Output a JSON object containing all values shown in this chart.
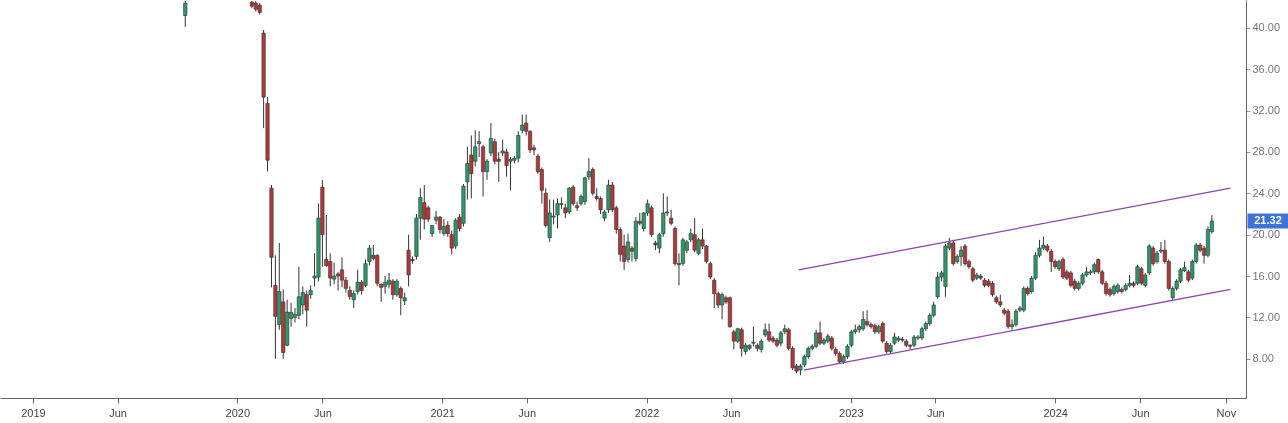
{
  "chart_data": {
    "type": "candlestick",
    "colors": [
      "#2a9a6a",
      "#b23838",
      "#b23838",
      "#b23838",
      "#b23838",
      "#b23838",
      "#b23838",
      "#b23838",
      "#2a9a6a",
      "#b23838",
      "#2a9a6a",
      "#2a9a6a",
      "#2a9a6a",
      "#2a9a6a",
      "#2a9a6a",
      "#b23838",
      "#2a9a6a",
      "#2a9a6a",
      "#2a9a6a",
      "#b23838",
      "#b23838",
      "#b23838",
      "#2a9a6a",
      "#b23838",
      "#b23838",
      "#b23838",
      "#b23838",
      "#2a9a6a",
      "#2a9a6a",
      "#b23838",
      "#2a9a6a",
      "#2a9a6a",
      "#b23838",
      "#b23838",
      "#b23838",
      "#2a9a6a",
      "#2a9a6a",
      "#b23838",
      "#2a9a6a",
      "#b23838",
      "#2a9a6a",
      "#b23838",
      "#b23838",
      "#2a9a6a",
      "#2a9a6a",
      "#b23838",
      "#b23838",
      "#2a9a6a",
      "#2a9a6a",
      "#b23838",
      "#2a9a6a",
      "#b23838",
      "#b23838",
      "#2a9a6a",
      "#b23838",
      "#2a9a6a",
      "#2a9a6a",
      "#b23838",
      "#2a9a6a",
      "#2a9a6a",
      "#b23838",
      "#2a9a6a",
      "#2a9a6a",
      "#b23838",
      "#b23838",
      "#2a9a6a",
      "#b23838",
      "#2a9a6a",
      "#2a9a6a",
      "#2a9a6a",
      "#2a9a6a",
      "#b23838",
      "#b23838",
      "#b23838",
      "#b23838",
      "#b23838",
      "#b23838",
      "#2a9a6a",
      "#2a9a6a",
      "#2a9a6a",
      "#2a9a6a",
      "#b23838",
      "#2a9a6a",
      "#b23838",
      "#b23838",
      "#2a9a6a",
      "#2a9a6a",
      "#2a9a6a",
      "#b23838",
      "#b23838",
      "#b23838",
      "#2a9a6a",
      "#2a9a6a",
      "#b23838",
      "#b23838",
      "#b23838",
      "#b23838",
      "#2a9a6a",
      "#b23838",
      "#2a9a6a",
      "#b23838",
      "#2a9a6a",
      "#2a9a6a",
      "#b23838",
      "#b23838",
      "#2a9a6a",
      "#2a9a6a",
      "#2a9a6a",
      "#b23838",
      "#b23838",
      "#b23838",
      "#2a9a6a",
      "#2a9a6a",
      "#2a9a6a",
      "#b23838",
      "#2a9a6a",
      "#b23838",
      "#b23838",
      "#b23838",
      "#b23838",
      "#b23838",
      "#2a9a6a",
      "#b23838",
      "#b23838",
      "#b23838",
      "#2a9a6a",
      "#b23838",
      "#2a9a6a",
      "#2a9a6a",
      "#2a9a6a",
      "#b23838",
      "#2a9a6a",
      "#2a9a6a",
      "#b23838",
      "#b23838",
      "#b23838",
      "#2a9a6a",
      "#2a9a6a",
      "#b23838",
      "#b23838",
      "#b23838",
      "#2a9a6a",
      "#2a9a6a",
      "#2a9a6a",
      "#2a9a6a",
      "#2a9a6a",
      "#b23838",
      "#2a9a6a",
      "#2a9a6a",
      "#b23838",
      "#b23838",
      "#b23838",
      "#2a9a6a",
      "#2a9a6a",
      "#2a9a6a",
      "#2a9a6a",
      "#2a9a6a",
      "#2a9a6a",
      "#b23838",
      "#b23838",
      "#b23838",
      "#2a9a6a",
      "#b23838",
      "#b23838",
      "#2a9a6a",
      "#2a9a6a",
      "#2a9a6a",
      "#b23838",
      "#b23838",
      "#b23838",
      "#2a9a6a",
      "#2a9a6a",
      "#2a9a6a",
      "#2a9a6a",
      "#2a9a6a",
      "#2a9a6a",
      "#2a9a6a",
      "#2a9a6a",
      "#2a9a6a",
      "#2a9a6a",
      "#b23838",
      "#2a9a6a",
      "#2a9a6a",
      "#b23838",
      "#b23838",
      "#b23838",
      "#2a9a6a",
      "#b23838",
      "#b23838",
      "#b23838",
      "#b23838",
      "#b23838",
      "#b23838",
      "#b23838",
      "#b23838",
      "#2a9a6a",
      "#2a9a6a",
      "#2a9a6a",
      "#2a9a6a",
      "#b23838",
      "#2a9a6a",
      "#2a9a6a",
      "#2a9a6a",
      "#2a9a6a",
      "#b23838",
      "#b23838",
      "#b23838",
      "#2a9a6a",
      "#b23838",
      "#b23838",
      "#b23838",
      "#b23838",
      "#2a9a6a",
      "#2a9a6a",
      "#2a9a6a",
      "#2a9a6a",
      "#2a9a6a",
      "#b23838",
      "#b23838",
      "#b23838",
      "#b23838",
      "#2a9a6a",
      "#2a9a6a",
      "#b23838",
      "#2a9a6a",
      "#2a9a6a",
      "#b23838",
      "#2a9a6a",
      "#b23838",
      "#2a9a6a",
      "#2a9a6a",
      "#b23838",
      "#2a9a6a",
      "#2a9a6a",
      "#b23838",
      "#b23838",
      "#2a9a6a",
      "#2a9a6a",
      "#2a9a6a",
      "#2a9a6a",
      "#b23838",
      "#2a9a6a",
      "#2a9a6a",
      "#b23838",
      "#b23838",
      "#2a9a6a",
      "#2a9a6a"
    ],
    "x": [
      "2019-09-30",
      "2020-01-27",
      "2020-02-03",
      "2020-02-10",
      "2020-02-17",
      "2020-02-24",
      "2020-03-02",
      "2020-03-09",
      "2020-03-16",
      "2020-03-23",
      "2020-03-30",
      "2020-04-06",
      "2020-04-13",
      "2020-04-20",
      "2020-04-27",
      "2020-05-04",
      "2020-05-11",
      "2020-05-18",
      "2020-05-25",
      "2020-06-01",
      "2020-06-08",
      "2020-06-15",
      "2020-06-22",
      "2020-06-29",
      "2020-07-06",
      "2020-07-13",
      "2020-07-20",
      "2020-07-27",
      "2020-08-03",
      "2020-08-10",
      "2020-08-17",
      "2020-08-24",
      "2020-08-31",
      "2020-09-07",
      "2020-09-14",
      "2020-09-21",
      "2020-09-28",
      "2020-10-05",
      "2020-10-12",
      "2020-10-19",
      "2020-10-26",
      "2020-11-02",
      "2020-11-09",
      "2020-11-16",
      "2020-11-23",
      "2020-11-30",
      "2020-12-07",
      "2020-12-14",
      "2020-12-21",
      "2020-12-28",
      "2021-01-04",
      "2021-01-11",
      "2021-01-18",
      "2021-01-25",
      "2021-02-01",
      "2021-02-08",
      "2021-02-15",
      "2021-02-22",
      "2021-03-01",
      "2021-03-08",
      "2021-03-15",
      "2021-03-22",
      "2021-03-29",
      "2021-04-05",
      "2021-04-12",
      "2021-04-19",
      "2021-04-26",
      "2021-05-03",
      "2021-05-10",
      "2021-05-17",
      "2021-05-24",
      "2021-05-31",
      "2021-06-07",
      "2021-06-14",
      "2021-06-21",
      "2021-06-28",
      "2021-07-05",
      "2021-07-12",
      "2021-07-19",
      "2021-07-26",
      "2021-08-02",
      "2021-08-09",
      "2021-08-16",
      "2021-08-23",
      "2021-08-30",
      "2021-09-06",
      "2021-09-13",
      "2021-09-20",
      "2021-09-27",
      "2021-10-04",
      "2021-10-11",
      "2021-10-18",
      "2021-10-25",
      "2021-11-01",
      "2021-11-08",
      "2021-11-15",
      "2021-11-22",
      "2021-11-29",
      "2021-12-06",
      "2021-12-13",
      "2021-12-20",
      "2021-12-27",
      "2022-01-03",
      "2022-01-10",
      "2022-01-17",
      "2022-01-24",
      "2022-01-31",
      "2022-02-07",
      "2022-02-14",
      "2022-02-21",
      "2022-02-28",
      "2022-03-07",
      "2022-03-14",
      "2022-03-21",
      "2022-03-28",
      "2022-04-04",
      "2022-04-11",
      "2022-04-18",
      "2022-04-25",
      "2022-05-02",
      "2022-05-09",
      "2022-05-16",
      "2022-05-23",
      "2022-05-30",
      "2022-06-06",
      "2022-06-13",
      "2022-06-20",
      "2022-06-27",
      "2022-07-04",
      "2022-07-11",
      "2022-07-18",
      "2022-07-25",
      "2022-08-01",
      "2022-08-08",
      "2022-08-15",
      "2022-08-22",
      "2022-08-29",
      "2022-09-05",
      "2022-09-12",
      "2022-09-19",
      "2022-09-26",
      "2022-10-03",
      "2022-10-10",
      "2022-10-17",
      "2022-10-24",
      "2022-10-31",
      "2022-11-07",
      "2022-11-14",
      "2022-11-21",
      "2022-11-28",
      "2022-12-05",
      "2022-12-12",
      "2022-12-19",
      "2022-12-26",
      "2023-01-02",
      "2023-01-09",
      "2023-01-16",
      "2023-01-23",
      "2023-01-30",
      "2023-02-06",
      "2023-02-13",
      "2023-02-20",
      "2023-02-27",
      "2023-03-06",
      "2023-03-13",
      "2023-03-20",
      "2023-03-27",
      "2023-04-03",
      "2023-04-10",
      "2023-04-17",
      "2023-04-24",
      "2023-05-01",
      "2023-05-08",
      "2023-05-15",
      "2023-05-22",
      "2023-05-29",
      "2023-06-05",
      "2023-06-12",
      "2023-06-19",
      "2023-06-26",
      "2023-07-03",
      "2023-07-10",
      "2023-07-17",
      "2023-07-24",
      "2023-07-31",
      "2023-08-07",
      "2023-08-14",
      "2023-08-21",
      "2023-08-28",
      "2023-09-04",
      "2023-09-11",
      "2023-09-18",
      "2023-09-25",
      "2023-10-02",
      "2023-10-09",
      "2023-10-16",
      "2023-10-23",
      "2023-10-30",
      "2023-11-06",
      "2023-11-13",
      "2023-11-20",
      "2023-11-27",
      "2023-12-04",
      "2023-12-11",
      "2023-12-18",
      "2023-12-25",
      "2024-01-01",
      "2024-01-08",
      "2024-01-15",
      "2024-01-22",
      "2024-01-29",
      "2024-02-05",
      "2024-02-12",
      "2024-02-19",
      "2024-02-26",
      "2024-03-04",
      "2024-03-11",
      "2024-03-18",
      "2024-03-25",
      "2024-04-01",
      "2024-04-08",
      "2024-04-15",
      "2024-04-22",
      "2024-04-29",
      "2024-05-06",
      "2024-05-13",
      "2024-05-20",
      "2024-05-27",
      "2024-06-03",
      "2024-06-10",
      "2024-06-17",
      "2024-06-24",
      "2024-07-01",
      "2024-07-08",
      "2024-07-15",
      "2024-07-22",
      "2024-07-29",
      "2024-08-05",
      "2024-08-12",
      "2024-08-19",
      "2024-08-26",
      "2024-09-02",
      "2024-09-09",
      "2024-09-16",
      "2024-09-23",
      "2024-09-30",
      "2024-10-07"
    ],
    "ohlc": [
      [
        41.2,
        42.6,
        40.1,
        42.4
      ],
      [
        42.5,
        42.6,
        41.9,
        42.1
      ],
      [
        42.4,
        42.6,
        41.6,
        41.8
      ],
      [
        42.2,
        42.4,
        41.3,
        41.5
      ],
      [
        39.5,
        39.8,
        30.3,
        33.3
      ],
      [
        32.7,
        33.3,
        26.1,
        27.2
      ],
      [
        24.5,
        24.8,
        14.9,
        17.8
      ],
      [
        15.1,
        18.0,
        8.0,
        12.1
      ],
      [
        11.3,
        19.2,
        10.8,
        14.5
      ],
      [
        13.5,
        14.7,
        8.0,
        8.6
      ],
      [
        9.3,
        13.7,
        9.2,
        12.5
      ],
      [
        11.9,
        13.4,
        11.1,
        12.5
      ],
      [
        12.0,
        12.9,
        11.5,
        12.3
      ],
      [
        12.2,
        16.9,
        11.8,
        14.0
      ],
      [
        13.2,
        15.0,
        12.3,
        14.4
      ],
      [
        14.2,
        14.6,
        11.1,
        12.7
      ],
      [
        14.2,
        15.1,
        13.8,
        14.6
      ],
      [
        15.8,
        18.2,
        15.0,
        16.0
      ],
      [
        15.9,
        23.0,
        15.5,
        21.6
      ],
      [
        24.6,
        25.3,
        16.9,
        20.0
      ],
      [
        17.6,
        21.9,
        16.9,
        17.0
      ],
      [
        17.4,
        18.2,
        15.0,
        15.8
      ],
      [
        15.7,
        17.3,
        15.2,
        16.0
      ],
      [
        16.2,
        16.4,
        14.6,
        16.0
      ],
      [
        16.6,
        17.8,
        14.9,
        15.6
      ],
      [
        15.6,
        15.9,
        14.4,
        14.8
      ],
      [
        14.6,
        15.0,
        13.7,
        14.0
      ],
      [
        13.7,
        14.6,
        12.9,
        14.3
      ],
      [
        14.5,
        16.6,
        14.2,
        15.4
      ],
      [
        15.4,
        15.6,
        14.2,
        14.6
      ],
      [
        15.1,
        17.6,
        14.9,
        17.2
      ],
      [
        17.4,
        19.0,
        17.0,
        18.7
      ],
      [
        18.0,
        19.0,
        17.5,
        17.7
      ],
      [
        18.0,
        18.1,
        15.0,
        15.3
      ],
      [
        15.2,
        15.3,
        13.5,
        14.9
      ],
      [
        15.0,
        16.0,
        14.3,
        15.4
      ],
      [
        15.2,
        16.3,
        14.8,
        15.6
      ],
      [
        15.5,
        15.7,
        13.7,
        14.2
      ],
      [
        14.2,
        15.7,
        14.0,
        15.5
      ],
      [
        14.8,
        15.0,
        12.2,
        13.9
      ],
      [
        13.6,
        14.4,
        13.2,
        13.9
      ],
      [
        18.5,
        20.0,
        15.0,
        16.1
      ],
      [
        17.6,
        17.9,
        17.2,
        17.5
      ],
      [
        17.9,
        22.0,
        17.6,
        21.6
      ],
      [
        21.6,
        24.5,
        19.5,
        23.6
      ],
      [
        23.1,
        24.8,
        20.5,
        21.5
      ],
      [
        22.6,
        22.8,
        21.2,
        21.5
      ],
      [
        20.1,
        20.9,
        19.8,
        20.9
      ],
      [
        21.4,
        22.3,
        21.0,
        21.7
      ],
      [
        21.7,
        21.8,
        20.1,
        20.5
      ],
      [
        20.1,
        21.5,
        19.9,
        20.8
      ],
      [
        20.9,
        21.3,
        19.8,
        20.1
      ],
      [
        20.0,
        20.4,
        18.1,
        18.7
      ],
      [
        18.9,
        21.6,
        18.6,
        21.4
      ],
      [
        21.7,
        22.0,
        20.3,
        20.6
      ],
      [
        21.1,
        24.9,
        20.8,
        24.7
      ],
      [
        25.1,
        28.5,
        23.4,
        26.9
      ],
      [
        27.7,
        29.6,
        23.5,
        25.9
      ],
      [
        27.1,
        30.1,
        26.6,
        28.5
      ],
      [
        28.8,
        30.0,
        27.5,
        29.0
      ],
      [
        28.5,
        28.7,
        23.7,
        26.1
      ],
      [
        26.1,
        27.3,
        25.3,
        27.1
      ],
      [
        27.9,
        30.8,
        27.6,
        29.3
      ],
      [
        29.0,
        29.3,
        26.8,
        27.1
      ],
      [
        27.3,
        28.0,
        25.1,
        27.1
      ],
      [
        27.9,
        29.2,
        27.6,
        28.1
      ],
      [
        28.0,
        28.3,
        25.6,
        26.7
      ],
      [
        27.1,
        27.5,
        24.3,
        27.3
      ],
      [
        27.2,
        27.6,
        26.9,
        27.4
      ],
      [
        27.4,
        30.0,
        27.0,
        29.6
      ],
      [
        30.1,
        31.6,
        29.8,
        30.6
      ],
      [
        30.8,
        31.6,
        29.6,
        30.0
      ],
      [
        30.0,
        30.1,
        27.9,
        28.2
      ],
      [
        28.4,
        28.7,
        27.7,
        28.2
      ],
      [
        27.6,
        27.8,
        25.9,
        26.1
      ],
      [
        26.3,
        26.5,
        23.0,
        24.3
      ],
      [
        24.0,
        24.5,
        20.7,
        20.9
      ],
      [
        19.7,
        23.4,
        19.3,
        22.1
      ],
      [
        21.7,
        23.4,
        21.0,
        21.8
      ],
      [
        21.9,
        23.5,
        20.6,
        23.0
      ],
      [
        22.9,
        23.6,
        22.5,
        23.0
      ],
      [
        22.6,
        23.0,
        21.6,
        22.1
      ],
      [
        22.2,
        24.6,
        22.0,
        24.5
      ],
      [
        24.6,
        24.8,
        22.8,
        23.0
      ],
      [
        22.8,
        23.2,
        22.3,
        22.6
      ],
      [
        23.0,
        23.9,
        22.8,
        23.7
      ],
      [
        23.2,
        25.6,
        22.9,
        25.5
      ],
      [
        25.6,
        27.4,
        25.3,
        26.1
      ],
      [
        26.3,
        26.5,
        23.8,
        24.0
      ],
      [
        23.7,
        24.5,
        23.3,
        23.5
      ],
      [
        23.5,
        23.7,
        22.0,
        22.4
      ],
      [
        21.6,
        22.4,
        21.3,
        22.2
      ],
      [
        22.4,
        25.3,
        22.1,
        24.8
      ],
      [
        24.8,
        25.1,
        22.2,
        22.4
      ],
      [
        22.6,
        22.8,
        20.1,
        20.5
      ],
      [
        20.5,
        20.7,
        17.4,
        18.1
      ],
      [
        18.9,
        20.0,
        16.6,
        17.4
      ],
      [
        17.6,
        20.1,
        17.3,
        19.3
      ],
      [
        18.7,
        18.9,
        17.4,
        18.4
      ],
      [
        17.7,
        21.7,
        17.4,
        21.3
      ],
      [
        21.3,
        22.1,
        20.9,
        21.1
      ],
      [
        20.6,
        22.2,
        20.3,
        22.1
      ],
      [
        22.1,
        23.4,
        21.8,
        23.0
      ],
      [
        22.6,
        22.8,
        19.8,
        20.0
      ],
      [
        19.2,
        19.4,
        18.5,
        19.0
      ],
      [
        18.7,
        20.2,
        18.2,
        20.0
      ],
      [
        20.1,
        24.0,
        19.8,
        22.1
      ],
      [
        22.1,
        23.7,
        21.8,
        22.2
      ],
      [
        21.6,
        22.4,
        20.9,
        21.1
      ],
      [
        20.6,
        20.8,
        17.0,
        17.2
      ],
      [
        17.2,
        18.2,
        15.1,
        17.1
      ],
      [
        17.2,
        19.7,
        17.0,
        19.5
      ],
      [
        18.5,
        19.5,
        18.2,
        19.3
      ],
      [
        19.5,
        20.6,
        19.3,
        20.1
      ],
      [
        20.0,
        21.6,
        18.3,
        18.5
      ],
      [
        18.2,
        19.7,
        18.0,
        19.5
      ],
      [
        19.5,
        20.6,
        18.6,
        18.9
      ],
      [
        18.9,
        19.0,
        17.2,
        17.4
      ],
      [
        17.2,
        17.4,
        15.7,
        15.9
      ],
      [
        15.6,
        15.8,
        12.9,
        14.3
      ],
      [
        14.3,
        14.5,
        12.9,
        13.2
      ],
      [
        13.2,
        14.4,
        11.8,
        14.2
      ],
      [
        13.9,
        14.1,
        13.3,
        13.5
      ],
      [
        13.9,
        14.0,
        11.0,
        11.1
      ],
      [
        10.6,
        10.8,
        8.9,
        9.7
      ],
      [
        9.7,
        11.0,
        9.5,
        10.9
      ],
      [
        10.8,
        11.0,
        8.2,
        9.0
      ],
      [
        8.7,
        9.5,
        8.4,
        9.3
      ],
      [
        9.0,
        9.4,
        8.8,
        9.3
      ],
      [
        9.5,
        11.1,
        9.2,
        9.6
      ],
      [
        9.3,
        9.5,
        8.7,
        9.0
      ],
      [
        8.9,
        9.9,
        8.6,
        9.7
      ],
      [
        10.3,
        11.4,
        10.1,
        10.8
      ],
      [
        10.6,
        11.4,
        9.6,
        9.8
      ],
      [
        10.0,
        10.2,
        9.5,
        9.7
      ],
      [
        9.8,
        10.0,
        9.1,
        9.3
      ],
      [
        9.5,
        10.7,
        9.2,
        10.5
      ],
      [
        10.6,
        11.3,
        10.4,
        10.9
      ],
      [
        10.8,
        11.0,
        8.8,
        9.0
      ],
      [
        9.0,
        9.2,
        6.9,
        7.1
      ],
      [
        7.3,
        7.5,
        6.6,
        6.8
      ],
      [
        6.9,
        7.5,
        6.4,
        7.3
      ],
      [
        7.4,
        8.4,
        7.2,
        8.2
      ],
      [
        8.2,
        9.2,
        8.0,
        9.0
      ],
      [
        9.0,
        9.4,
        8.8,
        9.2
      ],
      [
        9.2,
        10.8,
        9.0,
        10.5
      ],
      [
        10.5,
        11.6,
        9.3,
        9.5
      ],
      [
        9.5,
        10.0,
        9.3,
        9.8
      ],
      [
        9.7,
        10.4,
        9.5,
        10.2
      ],
      [
        10.0,
        10.2,
        8.8,
        9.0
      ],
      [
        8.9,
        9.1,
        8.3,
        8.5
      ],
      [
        8.5,
        8.7,
        7.5,
        7.7
      ],
      [
        7.7,
        8.4,
        7.5,
        8.2
      ],
      [
        8.2,
        9.4,
        8.0,
        9.2
      ],
      [
        9.3,
        10.8,
        9.1,
        10.6
      ],
      [
        10.6,
        11.3,
        10.4,
        10.8
      ],
      [
        10.8,
        11.3,
        10.5,
        11.1
      ],
      [
        10.9,
        12.6,
        10.7,
        11.8
      ],
      [
        11.6,
        12.7,
        11.1,
        11.3
      ],
      [
        11.3,
        11.5,
        10.9,
        11.1
      ],
      [
        11.2,
        11.4,
        10.4,
        10.6
      ],
      [
        10.6,
        11.3,
        10.4,
        11.1
      ],
      [
        11.4,
        11.6,
        9.5,
        9.7
      ],
      [
        9.5,
        9.7,
        8.5,
        8.7
      ],
      [
        8.7,
        9.5,
        8.5,
        9.3
      ],
      [
        9.5,
        10.5,
        9.3,
        10.1
      ],
      [
        9.8,
        10.2,
        9.6,
        10.0
      ],
      [
        9.9,
        10.1,
        9.6,
        9.8
      ],
      [
        9.7,
        9.9,
        9.1,
        9.3
      ],
      [
        9.3,
        9.4,
        8.9,
        9.2
      ],
      [
        9.3,
        10.3,
        9.1,
        10.1
      ],
      [
        10.0,
        10.3,
        9.8,
        10.1
      ],
      [
        10.0,
        11.1,
        9.8,
        10.9
      ],
      [
        10.9,
        11.6,
        10.7,
        11.4
      ],
      [
        11.4,
        12.4,
        11.2,
        12.2
      ],
      [
        12.2,
        13.5,
        12.0,
        13.2
      ],
      [
        14.0,
        16.4,
        13.8,
        15.9
      ],
      [
        15.9,
        16.5,
        15.5,
        16.3
      ],
      [
        15.0,
        19.1,
        14.0,
        18.9
      ],
      [
        18.7,
        19.7,
        18.5,
        19.2
      ],
      [
        19.2,
        19.5,
        17.0,
        17.2
      ],
      [
        17.4,
        18.1,
        17.2,
        17.9
      ],
      [
        17.9,
        18.9,
        17.0,
        18.5
      ],
      [
        18.9,
        19.1,
        17.0,
        17.2
      ],
      [
        17.4,
        17.6,
        16.7,
        16.9
      ],
      [
        16.7,
        16.9,
        15.4,
        15.6
      ],
      [
        15.8,
        16.3,
        15.6,
        16.1
      ],
      [
        16.0,
        16.2,
        15.6,
        15.8
      ],
      [
        15.6,
        15.8,
        14.9,
        15.1
      ],
      [
        15.5,
        15.7,
        14.9,
        15.1
      ],
      [
        15.3,
        15.5,
        14.0,
        14.2
      ],
      [
        13.9,
        14.1,
        13.3,
        13.5
      ],
      [
        13.5,
        14.2,
        13.0,
        13.2
      ],
      [
        12.7,
        12.9,
        12.2,
        12.4
      ],
      [
        12.6,
        12.8,
        10.9,
        11.1
      ],
      [
        11.1,
        11.8,
        10.8,
        11.3
      ],
      [
        11.3,
        12.8,
        11.1,
        12.6
      ],
      [
        12.7,
        13.1,
        12.5,
        12.9
      ],
      [
        12.7,
        15.0,
        12.5,
        14.8
      ],
      [
        14.8,
        15.0,
        14.1,
        14.3
      ],
      [
        14.5,
        16.0,
        14.3,
        15.8
      ],
      [
        15.8,
        18.3,
        15.6,
        18.0
      ],
      [
        18.0,
        19.5,
        17.8,
        18.7
      ],
      [
        18.7,
        19.8,
        18.5,
        19.0
      ],
      [
        18.9,
        19.1,
        18.3,
        18.5
      ],
      [
        18.4,
        18.6,
        16.4,
        17.4
      ],
      [
        17.4,
        17.6,
        16.7,
        16.9
      ],
      [
        16.7,
        17.6,
        16.5,
        17.4
      ],
      [
        17.6,
        17.8,
        15.7,
        15.9
      ],
      [
        16.4,
        16.6,
        15.6,
        15.8
      ],
      [
        16.3,
        16.5,
        14.9,
        15.1
      ],
      [
        15.5,
        15.7,
        14.6,
        14.8
      ],
      [
        14.8,
        15.5,
        14.6,
        15.3
      ],
      [
        15.3,
        16.3,
        15.1,
        16.1
      ],
      [
        16.1,
        16.9,
        15.9,
        16.4
      ],
      [
        16.3,
        16.6,
        16.1,
        16.4
      ],
      [
        16.4,
        17.3,
        16.2,
        17.1
      ],
      [
        17.6,
        17.7,
        16.2,
        16.4
      ],
      [
        16.4,
        16.6,
        15.1,
        15.3
      ],
      [
        15.3,
        15.5,
        14.1,
        14.3
      ],
      [
        14.7,
        14.9,
        14.0,
        14.2
      ],
      [
        14.3,
        15.2,
        14.1,
        15.0
      ],
      [
        14.5,
        15.3,
        14.3,
        15.1
      ],
      [
        14.7,
        14.9,
        14.3,
        14.5
      ],
      [
        14.7,
        15.3,
        14.5,
        15.1
      ],
      [
        15.1,
        16.1,
        14.9,
        15.3
      ],
      [
        15.3,
        15.5,
        14.9,
        15.1
      ],
      [
        15.3,
        17.1,
        15.1,
        16.9
      ],
      [
        16.7,
        16.9,
        15.1,
        15.3
      ],
      [
        15.1,
        16.3,
        14.9,
        16.1
      ],
      [
        16.3,
        19.1,
        16.1,
        18.9
      ],
      [
        18.7,
        18.9,
        17.0,
        17.2
      ],
      [
        17.4,
        18.4,
        17.2,
        18.2
      ],
      [
        18.4,
        19.3,
        18.2,
        18.5
      ],
      [
        18.5,
        19.5,
        17.2,
        17.4
      ],
      [
        17.4,
        17.6,
        14.6,
        14.8
      ],
      [
        13.9,
        15.0,
        13.7,
        14.8
      ],
      [
        14.8,
        15.7,
        14.6,
        15.5
      ],
      [
        15.5,
        16.8,
        15.3,
        16.6
      ],
      [
        16.5,
        17.4,
        16.4,
        16.8
      ],
      [
        16.4,
        16.6,
        15.4,
        15.6
      ],
      [
        15.8,
        17.6,
        15.6,
        17.4
      ],
      [
        17.4,
        19.2,
        17.2,
        19.0
      ],
      [
        19.0,
        19.2,
        18.3,
        18.5
      ],
      [
        18.7,
        18.9,
        17.2,
        18.0
      ],
      [
        18.0,
        20.8,
        17.8,
        20.5
      ],
      [
        20.3,
        21.9,
        20.1,
        21.32
      ]
    ],
    "series": [
      {
        "type": "line",
        "color": "#8e44ad",
        "x": [
          "2022-09-30",
          "2024-11-09"
        ],
        "values": [
          16.6,
          24.5
        ]
      },
      {
        "type": "line",
        "color": "#8e44ad",
        "x": [
          "2022-10-09",
          "2024-11-09"
        ],
        "values": [
          6.9,
          14.7
        ]
      }
    ],
    "annotations": [
      "21.32"
    ],
    "xlim": [
      "2018-11-12",
      "2024-11-28"
    ],
    "xticks": [
      {
        "value": "2019-01-01",
        "label": "2019"
      },
      {
        "value": "2019-06-01",
        "label": "Jun"
      },
      {
        "value": "2020-01-01",
        "label": "2020"
      },
      {
        "value": "2020-06-01",
        "label": "Jun"
      },
      {
        "value": "2021-01-01",
        "label": "2021"
      },
      {
        "value": "2021-06-01",
        "label": "Jun"
      },
      {
        "value": "2022-01-01",
        "label": "2022"
      },
      {
        "value": "2022-06-01",
        "label": "Jun"
      },
      {
        "value": "2023-01-01",
        "label": "2023"
      },
      {
        "value": "2023-06-01",
        "label": "Jun"
      },
      {
        "value": "2024-01-01",
        "label": "2024"
      },
      {
        "value": "2024-06-01",
        "label": "Jun"
      },
      {
        "value": "2024-11-01",
        "label": "Nov"
      }
    ],
    "ylim": [
      4.2,
      42.7
    ],
    "yticks": [
      {
        "value": 8,
        "label": "8.00"
      },
      {
        "value": 12,
        "label": "12.00"
      },
      {
        "value": 16,
        "label": "16.00"
      },
      {
        "value": 20,
        "label": "20.00"
      },
      {
        "value": 24,
        "label": "24.00"
      },
      {
        "value": 28,
        "label": "28.00"
      },
      {
        "value": 32,
        "label": "32.00"
      },
      {
        "value": 36,
        "label": "36.00"
      },
      {
        "value": 40,
        "label": "40.00"
      }
    ]
  }
}
